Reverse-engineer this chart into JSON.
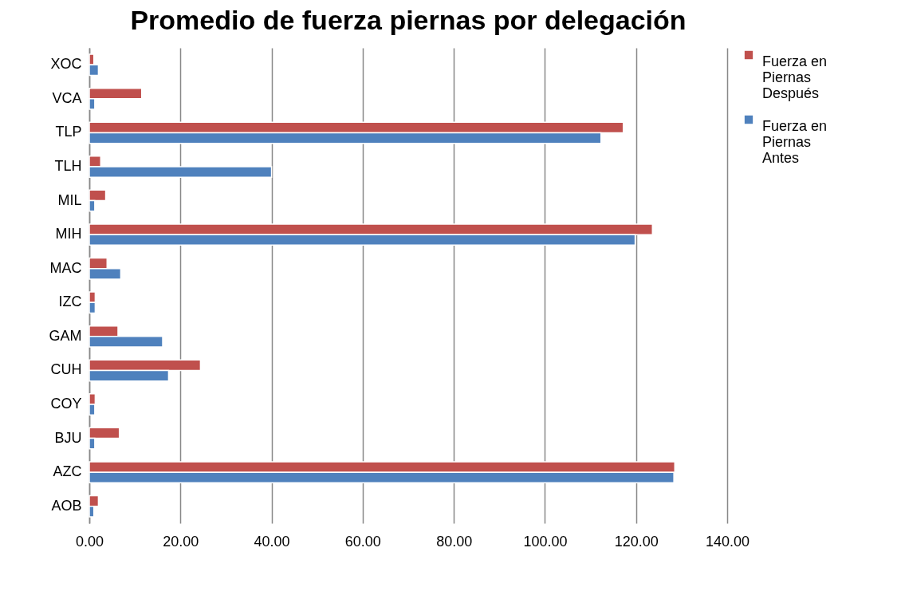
{
  "chart_data": {
    "type": "bar",
    "orientation": "horizontal",
    "title": "Promedio de fuerza piernas por delegación",
    "categories": [
      "XOC",
      "VCA",
      "TLP",
      "TLH",
      "MIL",
      "MIH",
      "MAC",
      "IZC",
      "GAM",
      "CUH",
      "COY",
      "BJU",
      "AZC",
      "AOB"
    ],
    "series": [
      {
        "name": "Fuerza en Piernas Después",
        "color": "#c0504d",
        "values": [
          1.0,
          11.5,
          117.2,
          2.5,
          3.6,
          123.6,
          3.9,
          1.3,
          6.3,
          24.4,
          1.3,
          6.6,
          128.5,
          2.0
        ]
      },
      {
        "name": "Fuerza en Piernas Antes",
        "color": "#4f81bd",
        "values": [
          2.0,
          1.2,
          112.3,
          40.0,
          1.2,
          119.8,
          6.9,
          1.3,
          16.1,
          17.4,
          1.2,
          1.2,
          128.3,
          1.0
        ]
      }
    ],
    "xlim": [
      0,
      140
    ],
    "xticks": [
      {
        "value": 0,
        "label": "0.00"
      },
      {
        "value": 20,
        "label": "20.00"
      },
      {
        "value": 40,
        "label": "40.00"
      },
      {
        "value": 60,
        "label": "60.00"
      },
      {
        "value": 80,
        "label": "80.00"
      },
      {
        "value": 100,
        "label": "100.00"
      },
      {
        "value": 120,
        "label": "120.00"
      },
      {
        "value": 140,
        "label": "140.00"
      }
    ],
    "grid": "x",
    "legend": "right"
  }
}
